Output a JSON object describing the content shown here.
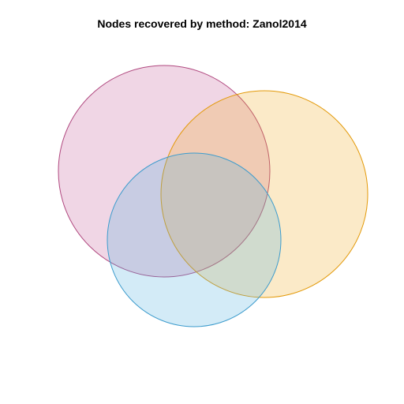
{
  "title": "Nodes recovered by method: Zanol2014",
  "sets": [
    {
      "key": "pink",
      "fill": "#c55d98",
      "stroke": "#b0487f"
    },
    {
      "key": "orange",
      "fill": "#eeaa22",
      "stroke": "#e39a0a"
    },
    {
      "key": "blue",
      "fill": "#4fb0e0",
      "stroke": "#3d9ccd"
    }
  ],
  "fill_opacity": 0.25
}
